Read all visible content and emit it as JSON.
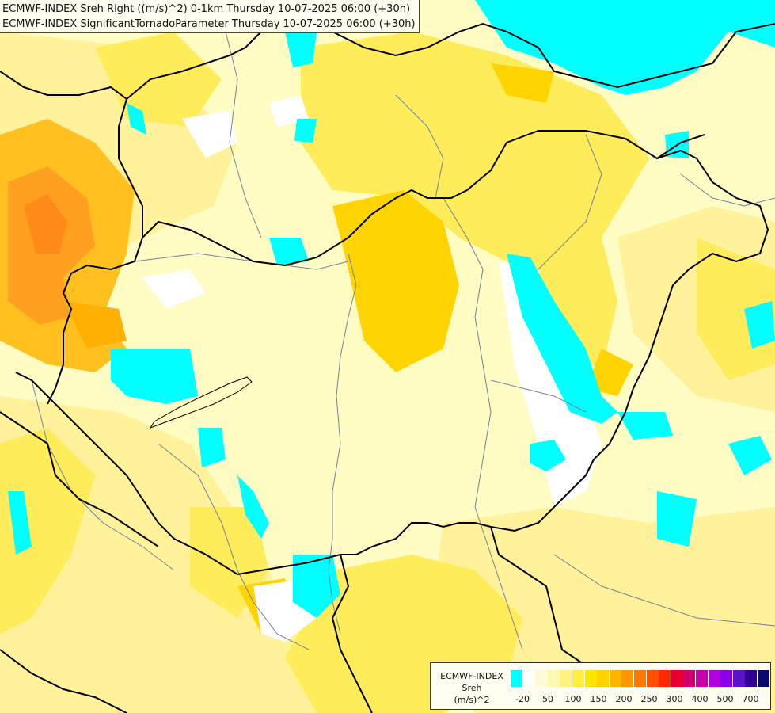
{
  "titles": {
    "line1": "ECMWF-INDEX Sreh Right ((m/s)^2) 0-1km Thursday 10-07-2025 06:00 (+30h)",
    "line2": "ECMWF-INDEX SignificantTornadoParameter Thursday 10-07-2025 06:00 (+30h)"
  },
  "legend": {
    "name": "ECMWF-INDEX",
    "param": "Sreh",
    "unit": "(m/s)^2",
    "colors": [
      "#00ffff",
      "#ffffff",
      "#fffbd8",
      "#fff8b0",
      "#fff380",
      "#ffee40",
      "#ffe600",
      "#ffd200",
      "#ffb400",
      "#ff9600",
      "#ff7800",
      "#ff5000",
      "#ff2800",
      "#e60032",
      "#d2006e",
      "#c800aa",
      "#b400dc",
      "#8c00e6",
      "#5a14c8",
      "#320096",
      "#0a0a6e"
    ],
    "ticks": [
      "-20",
      "50",
      "100",
      "150",
      "200",
      "250",
      "300",
      "400",
      "500",
      "700"
    ]
  },
  "map": {
    "colors": {
      "base": "#fffdc4",
      "light_yellow": "#fff5a0",
      "yellow": "#ffef70",
      "deep_yellow": "#ffe000",
      "gold": "#ffc820",
      "orange": "#ffa020",
      "dark_orange": "#ff8010",
      "cyan": "#00ffff",
      "white": "#ffffff",
      "border": "#000000",
      "river": "#7080a0"
    }
  }
}
